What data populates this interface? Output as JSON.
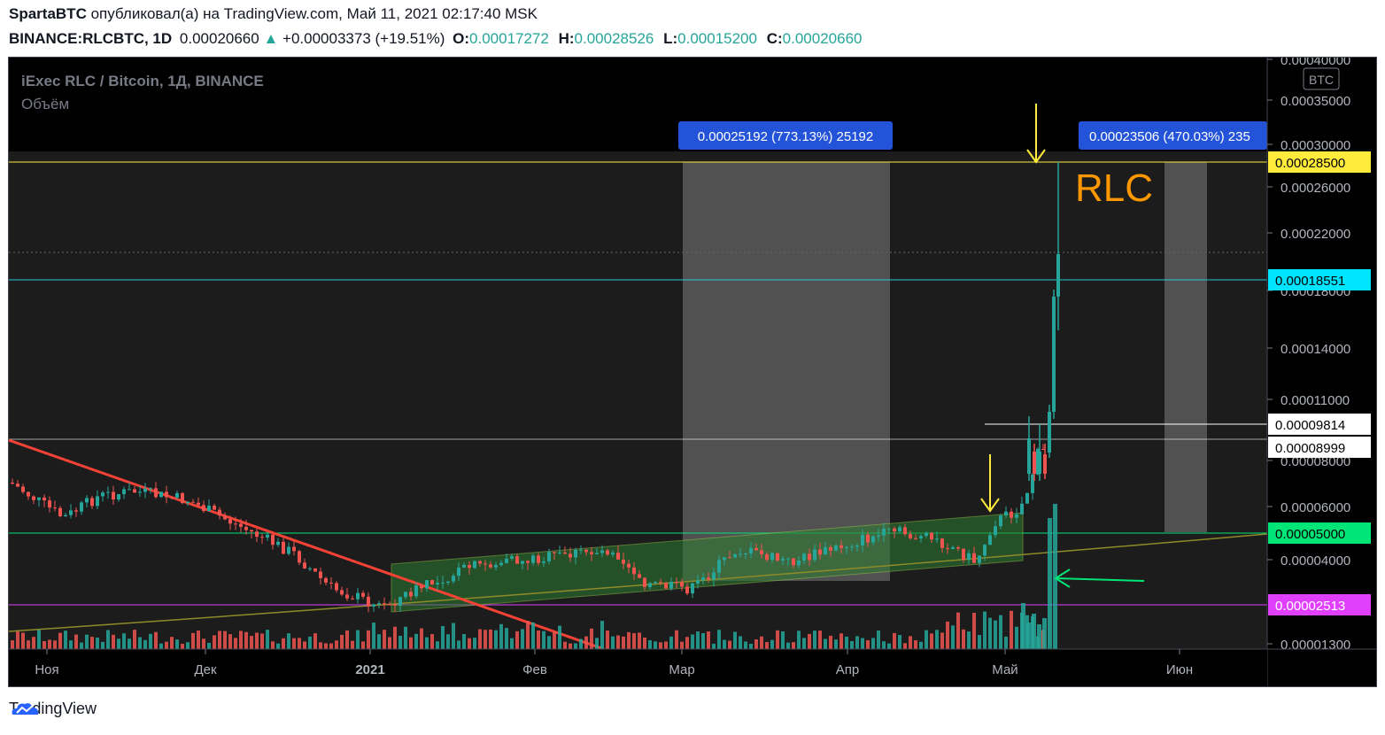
{
  "header": {
    "author": "SpartaBTC",
    "published_text": " опубликовал(а) на TradingView.com, Май 11, 2021 02:17:40 MSK",
    "symbol": "BINANCE:RLCBTC, 1D",
    "last": "0.00020660",
    "change": "+0.00003373 (+19.51%)",
    "o_label": "O:",
    "o_value": "0.00017272",
    "h_label": "H:",
    "h_value": "0.00028526",
    "l_label": "L:",
    "l_value": "0.00015200",
    "c_label": "C:",
    "c_value": "0.00020660"
  },
  "legend": {
    "title": "iExec RLC / Bitcoin, 1Д, BINANCE",
    "volume_label": "Объём"
  },
  "colors": {
    "up": "#26a69a",
    "down": "#ef5350",
    "background": "#000000",
    "cyan": "#00bcd4",
    "yellow": "#ffeb3b",
    "green": "#00e676",
    "magenta": "#e040fb",
    "orange_text": "#ff9800",
    "trendline": "#f44336",
    "channel": "#2e7d32"
  },
  "chart_data": {
    "type": "candlestick",
    "y_scale": "log",
    "currency": "BTC",
    "x_ticks": [
      "Ноя",
      "Дек",
      "2021",
      "Фев",
      "Мар",
      "Апр",
      "Май",
      "Июн"
    ],
    "y_ticks": [
      "0.00040000",
      "0.00035000",
      "0.00030000",
      "0.00026000",
      "0.00022000",
      "0.00018000",
      "0.00014000",
      "0.00011000",
      "0.00008000",
      "0.00006000",
      "0.00004000",
      "0.00001300"
    ],
    "price_levels": [
      {
        "label": "0.00028500",
        "color": "#ffeb3b",
        "text_color": "#000000"
      },
      {
        "label": "0.00018551",
        "color": "#00e5ff",
        "text_color": "#000000"
      },
      {
        "label": "0.00009814",
        "color": "#ffffff",
        "text_color": "#000000"
      },
      {
        "label": "0.00008999",
        "color": "#ffffff",
        "text_color": "#000000"
      },
      {
        "label": "0.00005000",
        "color": "#00e676",
        "text_color": "#000000"
      },
      {
        "label": "0.00002513",
        "color": "#e040fb",
        "text_color": "#ffffff"
      }
    ],
    "measure_labels": [
      "0.00025192 (773.13%) 25192",
      "0.00023506 (470.03%) 235"
    ],
    "annotation_text": "RLC",
    "ohlc_last": {
      "open": 0.00017272,
      "high": 0.00028526,
      "low": 0.000152,
      "close": 0.0002066
    }
  },
  "footer": {
    "brand": "TradingView"
  }
}
